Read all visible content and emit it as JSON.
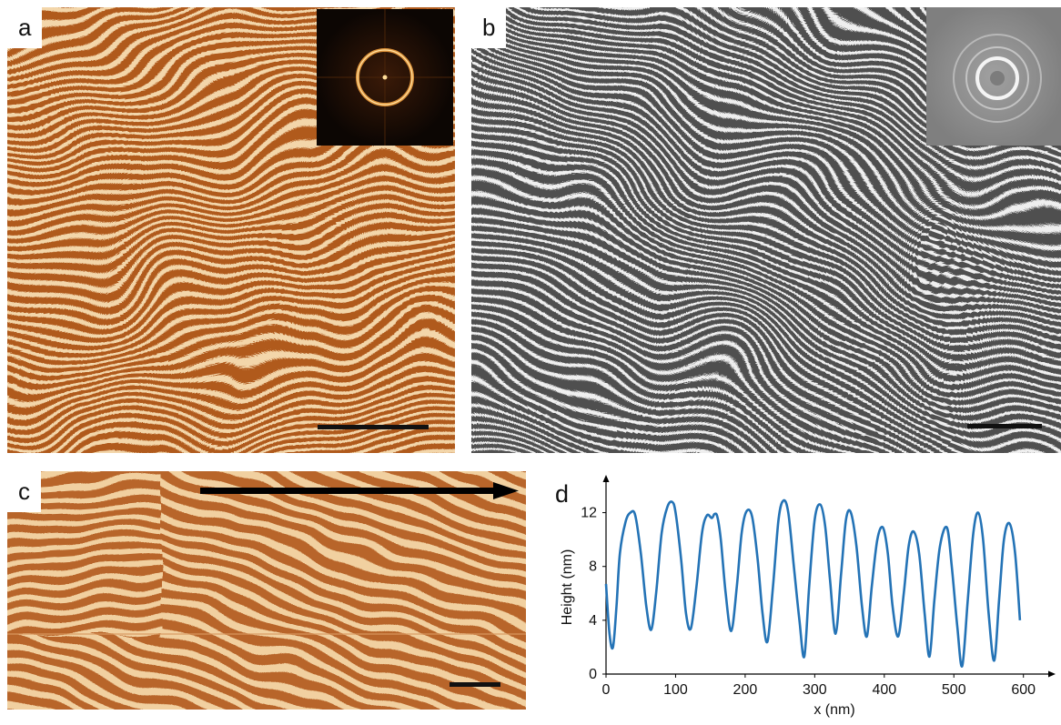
{
  "panels": {
    "a": {
      "label": "a",
      "image": "afm-height-map-fingerprint-stripes",
      "colormap": "#c26b2a",
      "inset": "fft-ring-pattern"
    },
    "b": {
      "label": "b",
      "image": "sem-fingerprint-lamellae",
      "colormap": "#5a5a5a",
      "inset": "fft-ring-pattern-gray"
    },
    "c": {
      "label": "c",
      "image": "afm-zoom-parallel-stripes",
      "colormap": "#c2782e",
      "arrow": "line-profile-direction"
    },
    "d": {
      "label": "d"
    }
  },
  "chart_data": {
    "type": "line",
    "xlabel": "x (nm)",
    "ylabel": "Height (nm)",
    "xlim": [
      0,
      620
    ],
    "ylim": [
      0,
      14
    ],
    "xticks": [
      "0",
      "100",
      "200",
      "300",
      "400",
      "500",
      "600"
    ],
    "yticks": [
      "0",
      "4",
      "8",
      "12"
    ],
    "grid": false,
    "line_color": "#2473b6",
    "series": [
      {
        "x": [
          0,
          5,
          10,
          15,
          20,
          28,
          35,
          42,
          50,
          58,
          65,
          72,
          80,
          88,
          95,
          100,
          108,
          115,
          122,
          130,
          138,
          145,
          152,
          156,
          160,
          165,
          172,
          180,
          188,
          195,
          202,
          210,
          218,
          225,
          232,
          240,
          248,
          255,
          262,
          270,
          278,
          285,
          292,
          300,
          308,
          315,
          322,
          330,
          338,
          345,
          352,
          360,
          368,
          375,
          382,
          390,
          398,
          405,
          412,
          420,
          428,
          435,
          442,
          450,
          458,
          465,
          472,
          480,
          490,
          497,
          505,
          512,
          520,
          528,
          535,
          542,
          550,
          558,
          565,
          572,
          580,
          588,
          595
        ],
        "y": [
          6.7,
          3.0,
          2.0,
          5.0,
          9.0,
          11.3,
          12.0,
          11.8,
          9.0,
          5.0,
          3.3,
          6.0,
          10.5,
          12.4,
          12.8,
          12.0,
          8.5,
          4.5,
          3.4,
          6.5,
          10.5,
          11.8,
          11.6,
          11.9,
          11.7,
          10.0,
          6.0,
          3.2,
          6.5,
          10.5,
          12.1,
          11.7,
          8.5,
          4.5,
          2.4,
          6.5,
          11.5,
          12.9,
          12.0,
          8.0,
          4.0,
          1.3,
          6.5,
          11.5,
          12.6,
          11.0,
          7.0,
          3.0,
          7.5,
          11.5,
          12.0,
          9.5,
          5.0,
          2.8,
          6.5,
          10.0,
          10.9,
          9.0,
          5.0,
          2.8,
          6.0,
          9.5,
          10.6,
          9.0,
          4.5,
          1.3,
          5.5,
          9.5,
          10.9,
          8.0,
          3.5,
          0.6,
          5.5,
          10.5,
          12.0,
          10.0,
          4.5,
          1.0,
          5.5,
          10.0,
          11.2,
          9.0,
          4.0
        ]
      }
    ]
  }
}
